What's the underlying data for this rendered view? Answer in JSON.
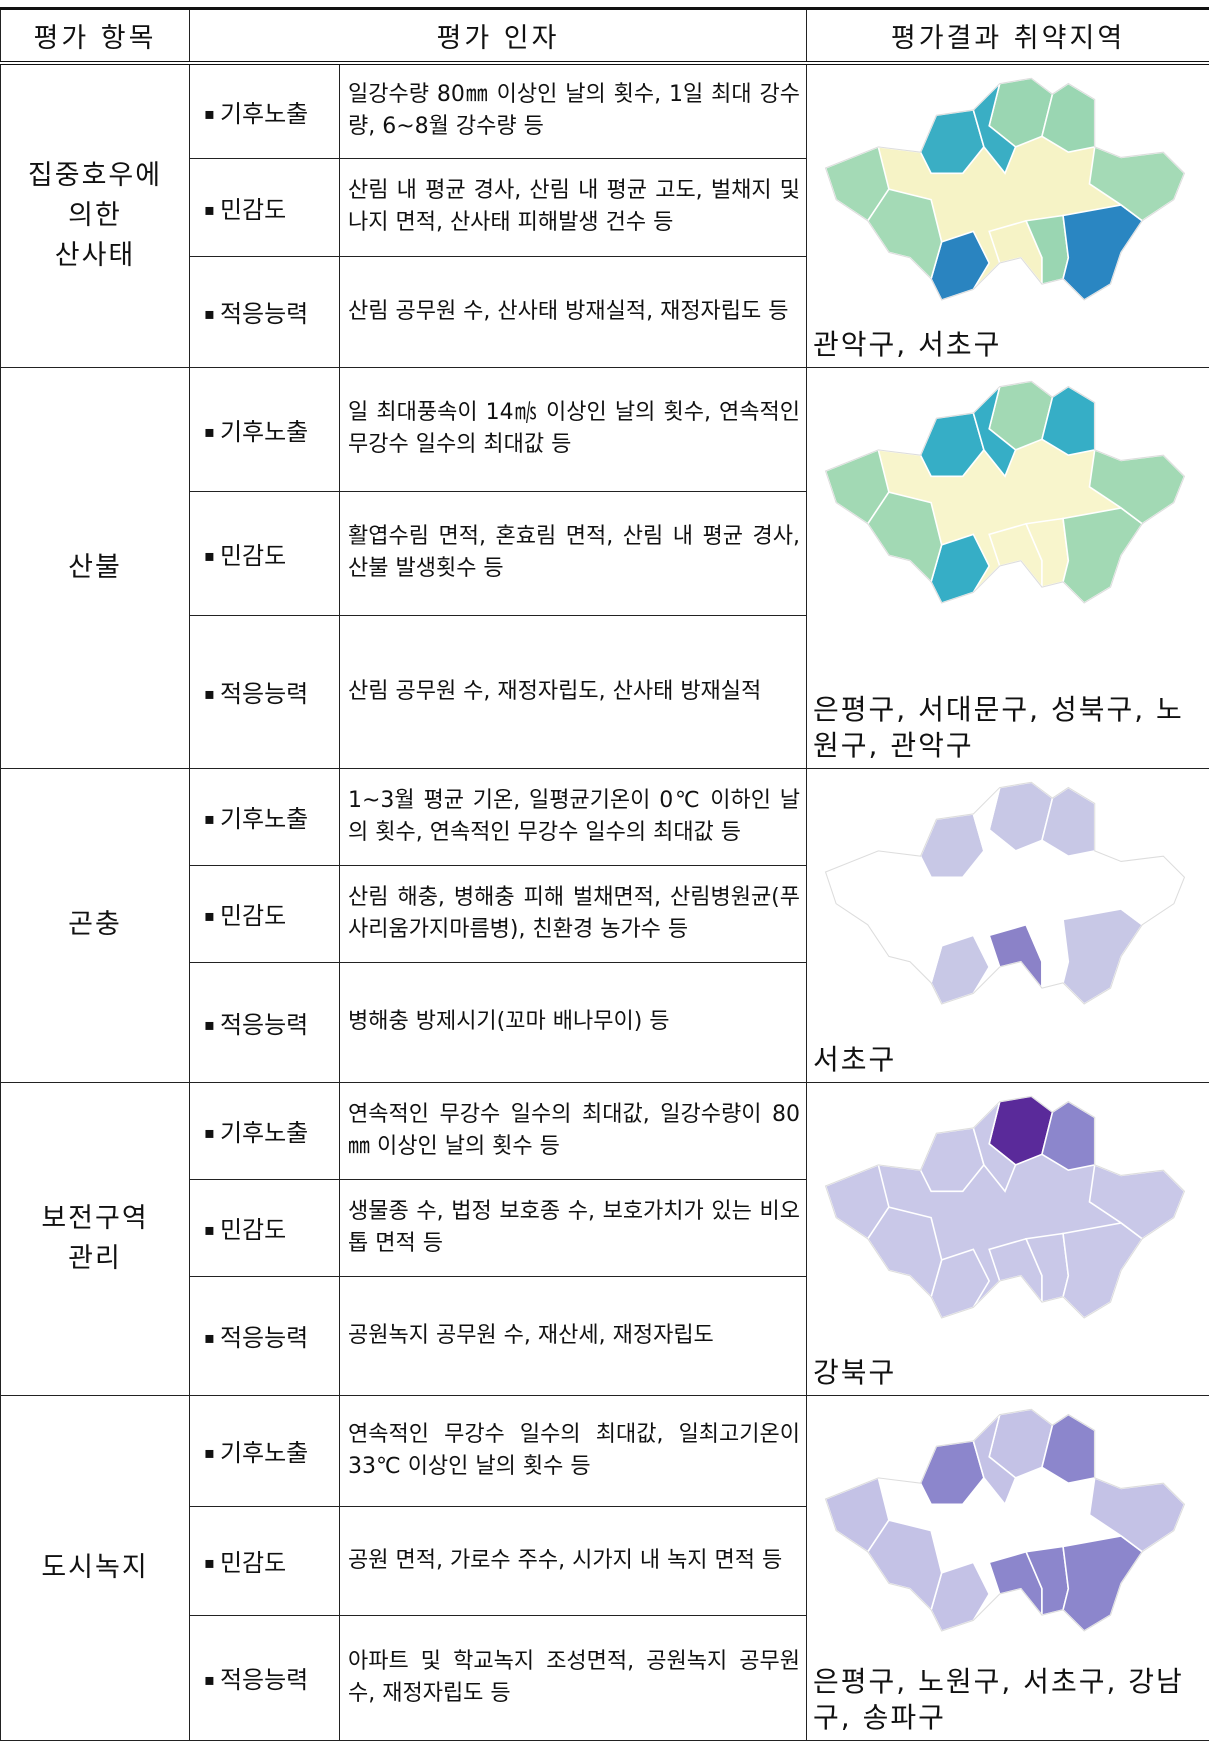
{
  "header": [
    "평가 항목",
    "평가 인자",
    "평가결과 취약지역"
  ],
  "rows": [
    {
      "item": "집중호우에\n의한\n산사태",
      "factors": [
        {
          "type": "기후노출",
          "text": "일강수량 80㎜ 이상인 날의 횟수, 1일 최대 강수량, 6~8월 강수량 등"
        },
        {
          "type": "민감도",
          "text": "산림 내 평균 경사, 산림 내 평균 고도, 벌채지 및 나지 면적, 산사태 피해발생 건수 등"
        },
        {
          "type": "적응능력",
          "text": "산림 공무원 수, 산사태 방재실적, 재정자립도 등"
        }
      ],
      "result": "관악구, 서초구"
    },
    {
      "item": "산불",
      "factors": [
        {
          "type": "기후노출",
          "text": "일 최대풍속이 14㎧ 이상인 날의 횟수, 연속적인 무강수 일수의 최대값 등"
        },
        {
          "type": "민감도",
          "text": "활엽수림 면적, 혼효림 면적, 산림 내 평균 경사, 산불 발생횟수 등"
        },
        {
          "type": "적응능력",
          "text": "산림 공무원 수, 재정자립도, 산사태 방재실적"
        }
      ],
      "result": "은평구, 서대문구, 성북구, 노원구, 관악구"
    },
    {
      "item": "곤충",
      "factors": [
        {
          "type": "기후노출",
          "text": "1~3월 평균 기온, 일평균기온이 0℃ 이하인 날의 횟수, 연속적인 무강수 일수의 최대값 등"
        },
        {
          "type": "민감도",
          "text": "산림 해충, 병해충 피해 벌채면적, 산림병원균(푸사리움가지마름병), 친환경 농가수 등"
        },
        {
          "type": "적응능력",
          "text": "병해충 방제시기(꼬마 배나무이) 등"
        }
      ],
      "result": "서초구"
    },
    {
      "item": "보전구역\n관리",
      "factors": [
        {
          "type": "기후노출",
          "text": "연속적인 무강수 일수의 최대값, 일강수량이 80㎜ 이상인 날의 횟수 등"
        },
        {
          "type": "민감도",
          "text": "생물종 수, 법정 보호종 수, 보호가치가 있는 비오톱 면적 등"
        },
        {
          "type": "적응능력",
          "text": "공원녹지 공무원 수, 재산세, 재정자립도"
        }
      ],
      "result": "강북구"
    },
    {
      "item": "도시녹지",
      "factors": [
        {
          "type": "기후노출",
          "text": "연속적인 무강수 일수의 최대값, 일최고기온이 33℃ 이상인 날의 횟수 등"
        },
        {
          "type": "민감도",
          "text": "공원 면적, 가로수 주수, 시가지 내 녹지 면적 등"
        },
        {
          "type": "적응능력",
          "text": "아파트 및 학교녹지 조성면적, 공원녹지 공무원 수, 재정자립도 등"
        }
      ],
      "result": "은평구, 노원구, 서초구, 강남구, 송파구"
    }
  ]
}
